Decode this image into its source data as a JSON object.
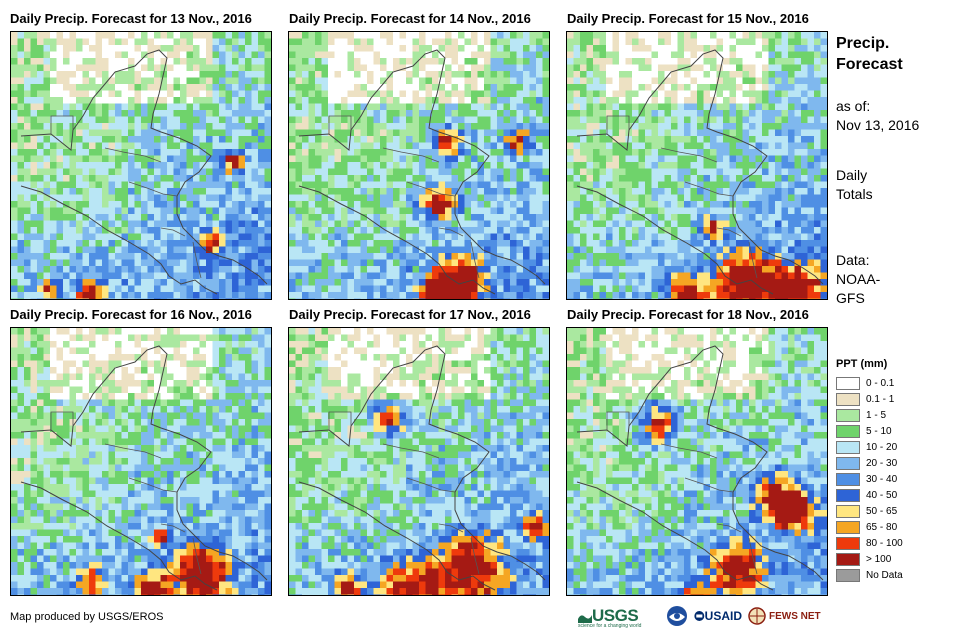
{
  "panels": [
    {
      "title": "Daily Precip. Forecast for 13 Nov., 2016",
      "seed": 13,
      "blobs": []
    },
    {
      "title": "Daily Precip. Forecast for 14 Nov., 2016",
      "seed": 14,
      "blobs": []
    },
    {
      "title": "Daily Precip. Forecast for 15 Nov., 2016",
      "seed": 15,
      "blobs": []
    },
    {
      "title": "Daily Precip. Forecast for 16 Nov., 2016",
      "seed": 16,
      "blobs": []
    },
    {
      "title": "Daily Precip. Forecast for 17 Nov., 2016",
      "seed": 17,
      "blobs": []
    },
    {
      "title": "Daily Precip. Forecast for 18 Nov., 2016",
      "seed": 18,
      "blobs": []
    }
  ],
  "side": {
    "title_line1": "Precip.",
    "title_line2": "Forecast",
    "asof_line1": "as of:",
    "asof_line2": "Nov 13, 2016",
    "totals_line1": "Daily",
    "totals_line2": "Totals",
    "data_line1": "Data:",
    "data_line2": "NOAA-",
    "data_line3": "GFS"
  },
  "legend": {
    "title": "PPT (mm)",
    "items": [
      {
        "label": "0 - 0.1",
        "color": "#ffffff"
      },
      {
        "label": "0.1 - 1",
        "color": "#ede1c3"
      },
      {
        "label": "1 - 5",
        "color": "#aae8a0"
      },
      {
        "label": "5 - 10",
        "color": "#6fd36b"
      },
      {
        "label": "10 - 20",
        "color": "#b9e6f5"
      },
      {
        "label": "20 - 30",
        "color": "#7fb8ee"
      },
      {
        "label": "30 - 40",
        "color": "#4f8fe4"
      },
      {
        "label": "40 - 50",
        "color": "#2e64d6"
      },
      {
        "label": "50 - 65",
        "color": "#ffe680"
      },
      {
        "label": "65 - 80",
        "color": "#f5a623"
      },
      {
        "label": "80 - 100",
        "color": "#ee3a0c"
      },
      {
        "label": "> 100",
        "color": "#a51a14"
      },
      {
        "label": "No Data",
        "color": "#9b9b9b"
      }
    ]
  },
  "footer": {
    "credit": "Map produced by USGS/EROS",
    "usgs": "USGS",
    "usgs_tagline": "science for a changing world",
    "usaid": "USAID",
    "fews": "FEWS NET"
  }
}
